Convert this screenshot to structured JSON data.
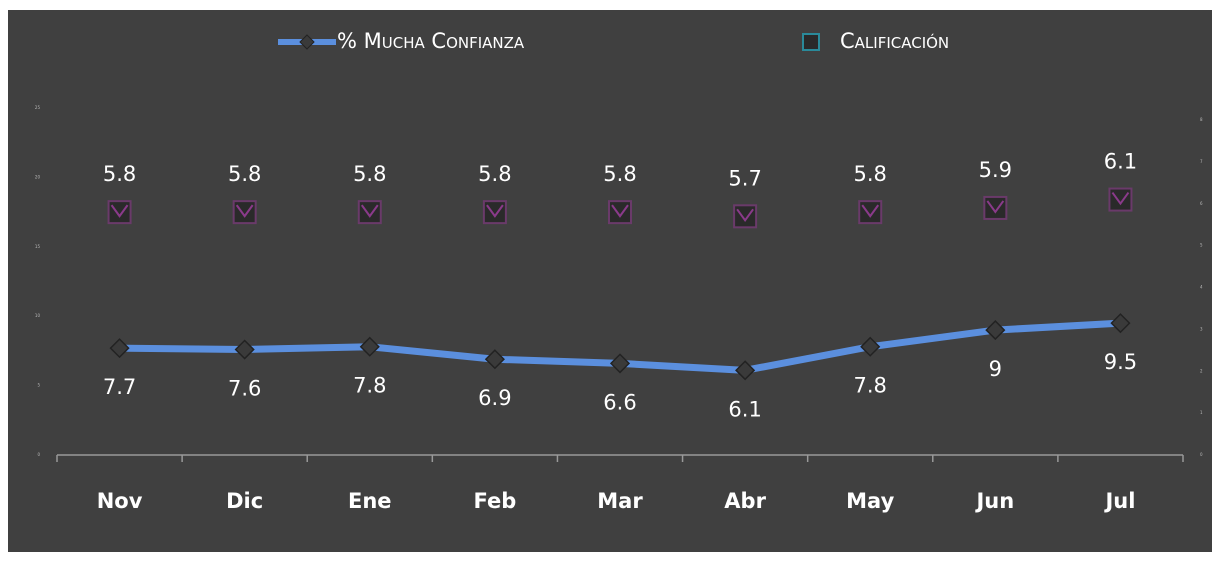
{
  "chart_data": {
    "type": "line",
    "categories": [
      "Nov",
      "Dic",
      "Ene",
      "Feb",
      "Mar",
      "Abr",
      "May",
      "Jun",
      "Jul"
    ],
    "series": [
      {
        "name": "% Mucha Confianza",
        "color": "#5b8fde",
        "values": [
          7.7,
          7.6,
          7.8,
          6.9,
          6.6,
          6.1,
          7.8,
          9.0,
          9.5
        ]
      },
      {
        "name": "Calificación",
        "color": "#2a2a2a",
        "axis": "y2",
        "values": [
          5.8,
          5.8,
          5.8,
          5.8,
          5.8,
          5.7,
          5.8,
          5.9,
          6.1
        ]
      }
    ],
    "ylim": [
      0,
      25
    ],
    "yticks": [
      0,
      5,
      10,
      15,
      20,
      25
    ],
    "y2lim": [
      0,
      8
    ],
    "y2ticks": [
      0,
      1,
      2,
      3,
      4,
      5,
      6,
      7,
      8
    ]
  }
}
